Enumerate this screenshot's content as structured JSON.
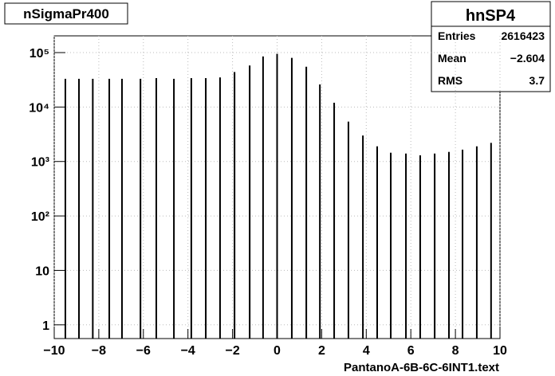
{
  "chart_data": {
    "type": "spike",
    "title": "nSigmaPr400",
    "x_label": "PantanoA-6B-6C-6INT1.text",
    "x": [
      -9.5,
      -8.89,
      -8.27,
      -7.53,
      -6.96,
      -6.13,
      -5.42,
      -4.63,
      -3.85,
      -3.2,
      -2.56,
      -1.91,
      -1.23,
      -0.63,
      0,
      0.66,
      1.31,
      1.92,
      2.56,
      3.2,
      3.85,
      4.49,
      5.1,
      5.78,
      6.42,
      7.07,
      7.71,
      8.32,
      8.96,
      9.6
    ],
    "values": [
      33000,
      33000,
      33000,
      33000,
      33000,
      33000,
      34000,
      33000,
      34000,
      34000,
      35000,
      44000,
      58000,
      85000,
      95000,
      80000,
      55000,
      26000,
      12000,
      5400,
      3000,
      1900,
      1450,
      1400,
      1300,
      1400,
      1500,
      1650,
      1900,
      2200
    ],
    "color": "#000000",
    "xlim": [
      -10,
      10
    ],
    "xticks": [
      {
        "value": -10,
        "label": "−10"
      },
      {
        "value": -8,
        "label": "−8"
      },
      {
        "value": -6,
        "label": "−6"
      },
      {
        "value": -4,
        "label": "−4"
      },
      {
        "value": -2,
        "label": "−2"
      },
      0,
      2,
      4,
      6,
      8,
      10
    ],
    "ylim": [
      0.56,
      203000
    ],
    "log_y": true,
    "yticks": [
      1,
      10,
      {
        "value": 100,
        "label": "10²"
      },
      {
        "value": 1000,
        "label": "10³"
      },
      {
        "value": 10000,
        "label": "10⁴"
      },
      {
        "value": 100000,
        "label": "10⁵"
      }
    ],
    "grid": true,
    "stats": {
      "name": "hnSP4",
      "rows": [
        {
          "label": "Entries",
          "value": "2616423"
        },
        {
          "label": "Mean",
          "value": "−2.604"
        },
        {
          "label": "RMS",
          "value": "3.7"
        }
      ]
    }
  }
}
